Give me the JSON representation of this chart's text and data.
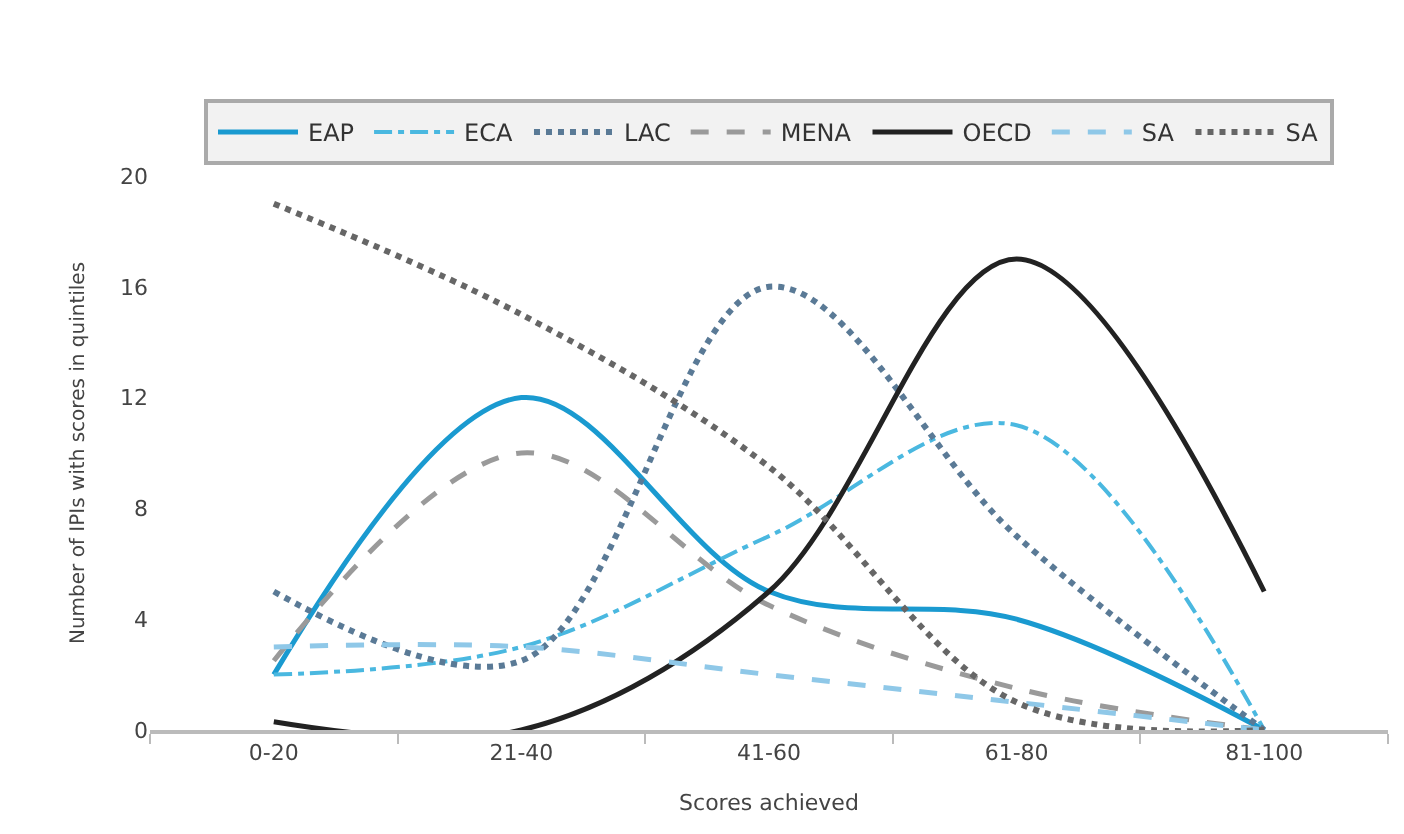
{
  "chart_data": {
    "type": "line",
    "xlabel": "Scores achieved",
    "ylabel": "Number of IPIs with scores in quintiles",
    "categories": [
      "0-20",
      "21-40",
      "41-60",
      "61-80",
      "81-100"
    ],
    "series": [
      {
        "name": "EAP",
        "color": "#1a9ad0",
        "line_style": "solid",
        "values": [
          2,
          12,
          5,
          4,
          0
        ]
      },
      {
        "name": "ECA",
        "color": "#4ab8e0",
        "line_style": "dashdot",
        "values": [
          2,
          3,
          7,
          11,
          0
        ]
      },
      {
        "name": "LAC",
        "color": "#5a7a96",
        "line_style": "dotted",
        "values": [
          5,
          2.5,
          16,
          7,
          0
        ]
      },
      {
        "name": "MENA",
        "color": "#9a9a9a",
        "line_style": "dashed",
        "values": [
          2.5,
          10,
          4.5,
          1.5,
          0
        ]
      },
      {
        "name": "OECD",
        "color": "#222222",
        "line_style": "solid",
        "values": [
          0.3,
          0,
          5,
          17,
          5
        ]
      },
      {
        "name": "SA",
        "color": "#8fc8e8",
        "line_style": "dashed",
        "values": [
          3,
          3,
          2,
          1,
          0
        ]
      },
      {
        "name": "SA",
        "color": "#666666",
        "line_style": "dotted",
        "values": [
          19,
          15,
          9.5,
          1,
          0
        ]
      }
    ],
    "ylim": [
      0,
      20
    ],
    "yticks": [
      0,
      4,
      8,
      12,
      16,
      20
    ],
    "legend": "top",
    "marker": "none"
  }
}
